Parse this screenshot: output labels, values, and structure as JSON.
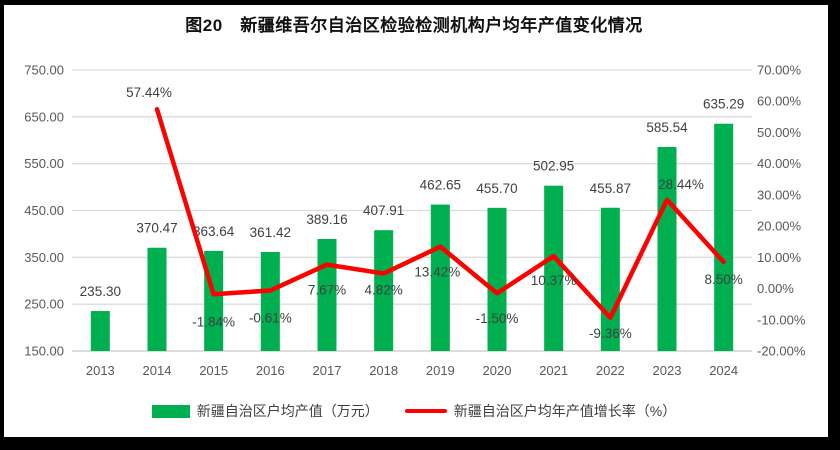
{
  "title": "图20　新疆维吾尔自治区检验检测机构户均年产值变化情况",
  "chart_data": {
    "type": "combo-bar-line",
    "categories": [
      "2013",
      "2014",
      "2015",
      "2016",
      "2017",
      "2018",
      "2019",
      "2020",
      "2021",
      "2022",
      "2023",
      "2024"
    ],
    "series": [
      {
        "name": "新疆自治区户均产值（万元）",
        "type": "bar",
        "axis": "left",
        "color": "#00AF50",
        "values": [
          235.3,
          370.47,
          363.64,
          361.42,
          389.16,
          407.91,
          462.65,
          455.7,
          502.95,
          455.87,
          585.54,
          635.29
        ],
        "labels": [
          "235.30",
          "370.47",
          "363.64",
          "361.42",
          "389.16",
          "407.91",
          "462.65",
          "455.70",
          "502.95",
          "455.87",
          "585.54",
          "635.29"
        ]
      },
      {
        "name": "新疆自治区户均年产值增长率（%）",
        "type": "line",
        "axis": "right",
        "color": "#FE0000",
        "values": [
          null,
          57.44,
          -1.84,
          -0.61,
          7.67,
          4.82,
          13.42,
          -1.5,
          10.37,
          -9.36,
          28.44,
          8.5
        ],
        "labels": [
          null,
          "57.44%",
          "-1.84%",
          "-0.61%",
          "7.67%",
          "4.82%",
          "13.42%",
          "-1.50%",
          "10.37%",
          "-9.36%",
          "28.44%",
          "8.50%"
        ],
        "label_positions": [
          null,
          "above",
          "below",
          "below",
          "below",
          "below",
          "below",
          "below",
          "below",
          "below",
          "above",
          "below"
        ]
      }
    ],
    "left_axis": {
      "min": 150,
      "max": 750,
      "step": 100,
      "ticks": [
        "750.00",
        "650.00",
        "550.00",
        "450.00",
        "350.00",
        "250.00",
        "150.00"
      ]
    },
    "right_axis": {
      "min": -20,
      "max": 70,
      "step": 10,
      "ticks": [
        "70.00%",
        "60.00%",
        "50.00%",
        "40.00%",
        "30.00%",
        "20.00%",
        "10.00%",
        "0.00%",
        "-10.00%",
        "-20.00%"
      ]
    },
    "grid": true,
    "legend_position": "bottom"
  },
  "colors": {
    "bar": "#00AF50",
    "line": "#FE0000",
    "grid": "#DCDCDC",
    "axis_line": "#C6C6C6",
    "tick_text": "#595959",
    "data_label": "#404040",
    "frame": "#000000"
  }
}
